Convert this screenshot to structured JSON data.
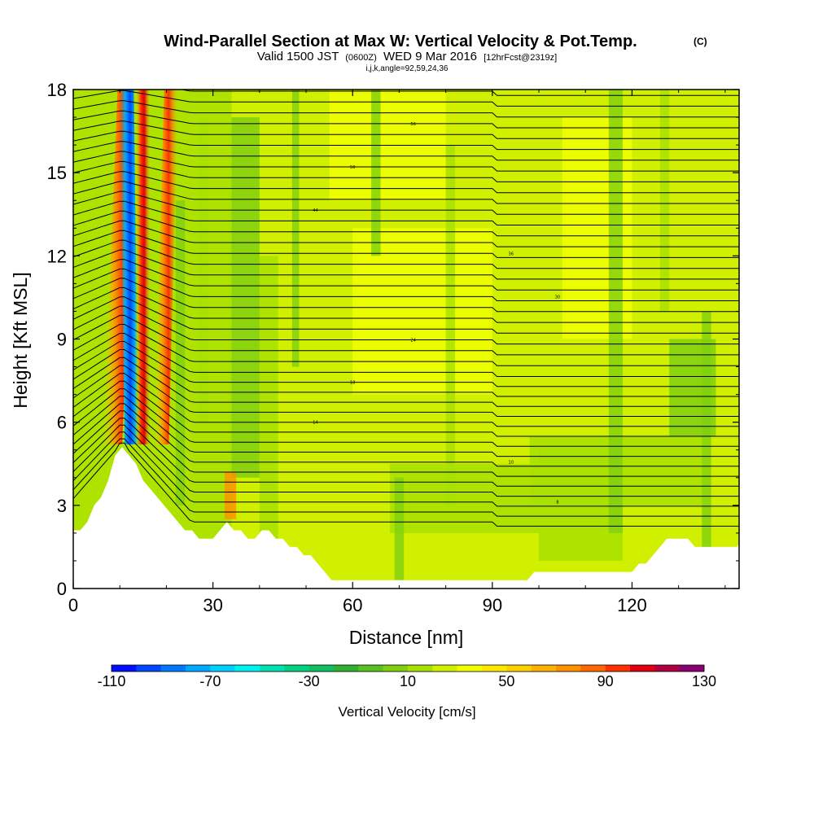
{
  "chart_data": {
    "type": "heatmap",
    "title": "Wind-Parallel Section at Max W: Vertical Velocity & Pot.Temp.",
    "title_mark": "(C)",
    "subtitle": {
      "valid": "Valid 1500 JST",
      "utc": "(0600Z)",
      "date": "WED 9 Mar 2016",
      "forecast": "[12hrFcst@2319z]"
    },
    "indices": "i,j,k,angle=92,59,24,36",
    "xlabel": "Distance [nm]",
    "ylabel": "Height [Kft MSL]",
    "xlim": [
      0,
      143
    ],
    "ylim": [
      0,
      18
    ],
    "xticks": [
      "0",
      "30",
      "60",
      "90",
      "120"
    ],
    "xtick_values": [
      0,
      30,
      60,
      90,
      120
    ],
    "yticks": [
      "0",
      "3",
      "6",
      "9",
      "12",
      "15",
      "18"
    ],
    "ytick_values": [
      0,
      3,
      6,
      9,
      12,
      15,
      18
    ],
    "colorbar": {
      "title": "Vertical Velocity [cm/s]",
      "labels": [
        "-110",
        "-70",
        "-30",
        "10",
        "50",
        "90",
        "130"
      ],
      "label_values": [
        -110,
        -70,
        -30,
        10,
        50,
        90,
        130
      ],
      "min": -110,
      "max": 130,
      "step": 10,
      "colors": [
        "#0010ff",
        "#0048ff",
        "#0078ff",
        "#00a8ff",
        "#00d0ff",
        "#00f0f0",
        "#00e0b0",
        "#00d080",
        "#10c060",
        "#30b030",
        "#58c020",
        "#80d010",
        "#a8e000",
        "#d0f000",
        "#f0ff00",
        "#ffe800",
        "#ffd000",
        "#ffb000",
        "#ff9000",
        "#ff6800",
        "#ff3000",
        "#e00010",
        "#b00040",
        "#880070"
      ]
    },
    "terrain_profile": {
      "x": [
        0,
        2,
        4,
        6,
        8,
        9,
        10,
        11,
        12,
        14,
        16,
        18,
        20,
        22,
        24,
        26,
        28,
        30,
        32,
        34,
        36,
        38,
        40,
        42,
        44,
        46,
        48,
        50,
        52,
        54,
        56,
        58,
        60,
        62,
        64,
        66,
        68,
        70,
        74,
        80,
        90,
        98,
        100,
        104,
        110,
        120,
        124,
        126,
        128,
        130,
        134,
        140,
        143
      ],
      "height": [
        2.0,
        2.3,
        2.7,
        3.4,
        4.2,
        4.8,
        5.2,
        5.2,
        4.9,
        4.2,
        3.6,
        3.2,
        3.0,
        2.5,
        2.2,
        2.0,
        1.7,
        1.8,
        2.3,
        2.3,
        2.0,
        1.7,
        2.0,
        2.0,
        1.8,
        1.6,
        1.4,
        1.2,
        0.9,
        0.6,
        0.3,
        0.3,
        0.3,
        0.3,
        0.3,
        0.3,
        0.3,
        0.3,
        0.3,
        0.3,
        0.3,
        0.3,
        0.6,
        0.6,
        0.6,
        0.6,
        1.0,
        1.4,
        1.9,
        1.9,
        1.6,
        1.6,
        1.6
      ]
    },
    "theta_contours": {
      "count": 44,
      "labels": [
        "8",
        "10",
        "14",
        "18",
        "24",
        "30",
        "36",
        "44",
        "50",
        "56",
        "62",
        "70"
      ]
    }
  }
}
